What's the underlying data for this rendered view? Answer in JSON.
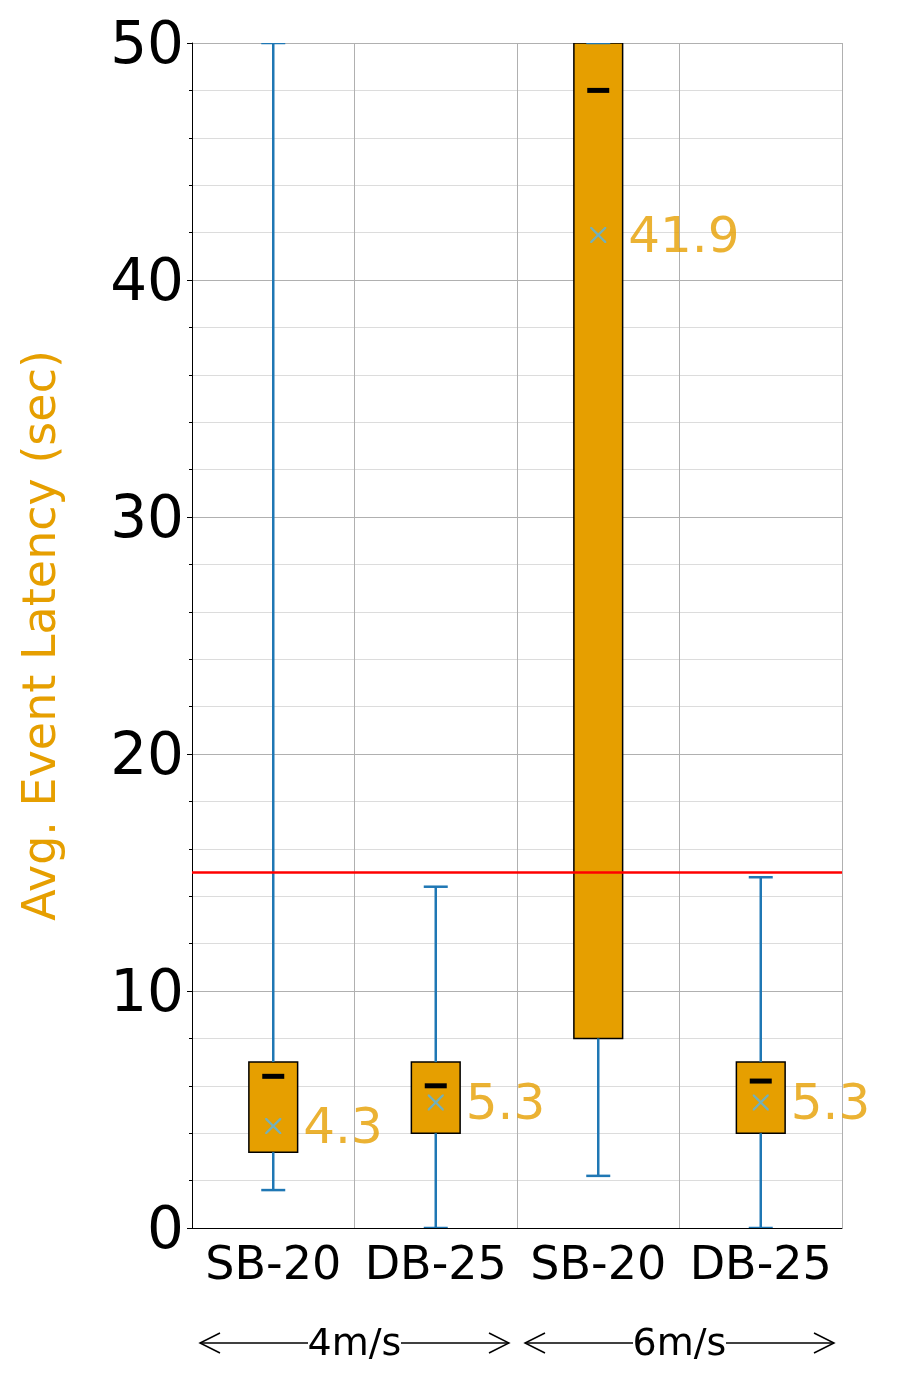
{
  "chart_data": {
    "type": "box",
    "ylabel": "Avg. Event Latency (sec)",
    "categories": [
      "SB-20",
      "DB-25",
      "SB-20",
      "DB-25"
    ],
    "color": "#e69f00",
    "boxes": [
      {
        "low": 1.6,
        "q1": 3.2,
        "median": 6.4,
        "q3": 7,
        "high": 50,
        "mean": 4.3
      },
      {
        "low": 0,
        "q1": 4,
        "median": 6.0,
        "q3": 7,
        "high": 14.4,
        "mean": 5.3
      },
      {
        "low": 2.2,
        "q1": 8,
        "median": 48,
        "q3": 50,
        "high": 50,
        "mean": 41.9
      },
      {
        "low": 0,
        "q1": 4,
        "median": 6.2,
        "q3": 7,
        "high": 14.8,
        "mean": 5.3
      }
    ],
    "marker": "cross",
    "ylim": [
      0,
      50
    ],
    "yticks": [
      0,
      10,
      20,
      30,
      40,
      50
    ],
    "grid": true,
    "ref_lines": [
      {
        "axis": "y",
        "value": 15,
        "color": "#ff0000"
      }
    ],
    "annotations": [
      "4m/s",
      "6m/s",
      "4.3",
      "5.3",
      "41.9",
      "5.3"
    ]
  }
}
